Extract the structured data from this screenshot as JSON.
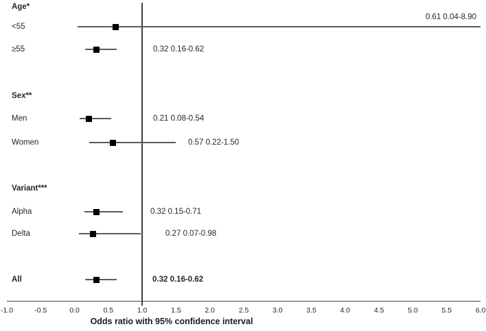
{
  "chart_data": {
    "type": "scatter",
    "subtype": "forest_plot",
    "title": "",
    "xlabel": "Odds ratio with 95% confidence interval",
    "ylabel": "",
    "xlim": [
      -1.0,
      6.0
    ],
    "x_ticks": [
      "-1.0",
      "-0.5",
      "0.0",
      "0.5",
      "1.0",
      "1.5",
      "2.0",
      "2.5",
      "3.0",
      "3.5",
      "4.0",
      "4.5",
      "5.0",
      "5.5",
      "6.0"
    ],
    "x_tick_values": [
      -1.0,
      -0.5,
      0.0,
      0.5,
      1.0,
      1.5,
      2.0,
      2.5,
      3.0,
      3.5,
      4.0,
      4.5,
      5.0,
      5.5,
      6.0
    ],
    "reference_line_x": 1.0,
    "grid": false,
    "legend": "none",
    "marker": "black-square",
    "rows": [
      {
        "kind": "header",
        "label": "Age*"
      },
      {
        "kind": "estimate",
        "label": "<55",
        "odds_ratio": 0.61,
        "ci_low": 0.04,
        "ci_high": 8.9,
        "value_text": "0.61 0.04-8.90",
        "bold": false
      },
      {
        "kind": "estimate",
        "label": "≥55",
        "odds_ratio": 0.32,
        "ci_low": 0.16,
        "ci_high": 0.62,
        "value_text": "0.32 0.16-0.62",
        "bold": false
      },
      {
        "kind": "header",
        "label": "Sex**"
      },
      {
        "kind": "estimate",
        "label": "Men",
        "odds_ratio": 0.21,
        "ci_low": 0.08,
        "ci_high": 0.54,
        "value_text": "0.21 0.08-0.54",
        "bold": false
      },
      {
        "kind": "estimate",
        "label": "Women",
        "odds_ratio": 0.57,
        "ci_low": 0.22,
        "ci_high": 1.5,
        "value_text": "0.57 0.22-1.50",
        "bold": false
      },
      {
        "kind": "header",
        "label": "Variant***"
      },
      {
        "kind": "estimate",
        "label": "Alpha",
        "odds_ratio": 0.32,
        "ci_low": 0.15,
        "ci_high": 0.71,
        "value_text": "0.32 0.15-0.71",
        "bold": false
      },
      {
        "kind": "estimate",
        "label": "Delta",
        "odds_ratio": 0.27,
        "ci_low": 0.07,
        "ci_high": 0.98,
        "value_text": "0.27 0.07-0.98",
        "bold": false
      },
      {
        "kind": "estimate",
        "label": "All",
        "odds_ratio": 0.32,
        "ci_low": 0.16,
        "ci_high": 0.62,
        "value_text": "0.32 0.16-0.62",
        "bold": true
      }
    ]
  },
  "colors": {
    "background": "#ffffff",
    "ci_line": "#595959",
    "axis_line": "#404040",
    "marker": "#000000",
    "text": "#262626"
  }
}
